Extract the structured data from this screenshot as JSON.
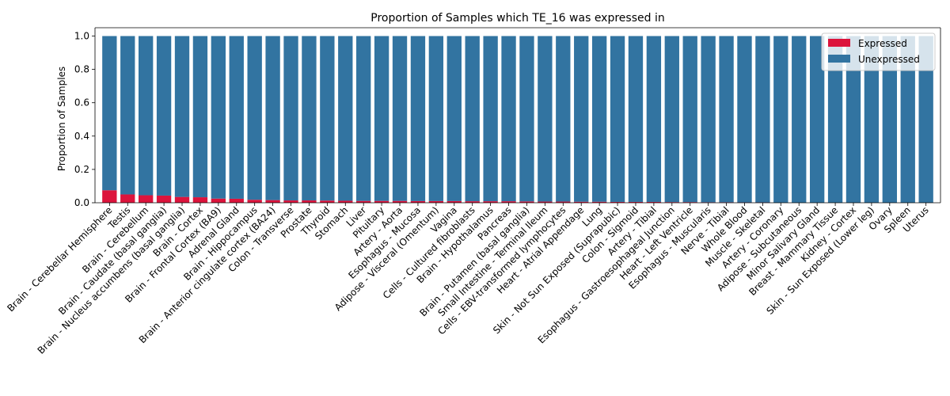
{
  "chart_data": {
    "type": "bar",
    "stacked": true,
    "title": "Proportion of Samples which TE_16 was expressed in",
    "xlabel": "",
    "ylabel": "Proportion of Samples",
    "ylim": [
      0,
      1.05
    ],
    "yticks": [
      "0.0",
      "0.2",
      "0.4",
      "0.6",
      "0.8",
      "1.0"
    ],
    "legend_position": "top-right",
    "categories": [
      "Brain - Cerebellar Hemisphere",
      "Testis",
      "Brain - Cerebellum",
      "Brain - Caudate (basal ganglia)",
      "Brain - Nucleus accumbens (basal ganglia)",
      "Brain - Cortex",
      "Brain - Frontal Cortex (BA9)",
      "Adrenal Gland",
      "Brain - Hippocampus",
      "Brain - Anterior cingulate cortex (BA24)",
      "Colon - Transverse",
      "Prostate",
      "Thyroid",
      "Stomach",
      "Liver",
      "Pituitary",
      "Artery - Aorta",
      "Esophagus - Mucosa",
      "Adipose - Visceral (Omentum)",
      "Vagina",
      "Cells - Cultured fibroblasts",
      "Brain - Hypothalamus",
      "Pancreas",
      "Brain - Putamen (basal ganglia)",
      "Small Intestine - Terminal Ileum",
      "Cells - EBV-transformed lymphocytes",
      "Heart - Atrial Appendage",
      "Lung",
      "Skin - Not Sun Exposed (Suprapubic)",
      "Colon - Sigmoid",
      "Artery - Tibial",
      "Esophagus - Gastroesophageal Junction",
      "Heart - Left Ventricle",
      "Esophagus - Muscularis",
      "Nerve - Tibial",
      "Whole Blood",
      "Muscle - Skeletal",
      "Artery - Coronary",
      "Adipose - Subcutaneous",
      "Minor Salivary Gland",
      "Breast - Mammary Tissue",
      "Kidney - Cortex",
      "Skin - Sun Exposed (Lower leg)",
      "Ovary",
      "Spleen",
      "Uterus"
    ],
    "series": [
      {
        "name": "Expressed",
        "color": "#dc143c",
        "values": [
          0.075,
          0.05,
          0.045,
          0.043,
          0.035,
          0.033,
          0.025,
          0.024,
          0.018,
          0.016,
          0.014,
          0.014,
          0.013,
          0.012,
          0.011,
          0.011,
          0.011,
          0.01,
          0.01,
          0.01,
          0.009,
          0.009,
          0.009,
          0.008,
          0.007,
          0.007,
          0.006,
          0.006,
          0.005,
          0.005,
          0.005,
          0.004,
          0.004,
          0.003,
          0.003,
          0.002,
          0.002,
          0,
          0,
          0,
          0,
          0,
          0,
          0,
          0,
          0
        ]
      },
      {
        "name": "Unexpressed",
        "color": "#3274a1",
        "values": "remainder-of-1"
      }
    ]
  }
}
